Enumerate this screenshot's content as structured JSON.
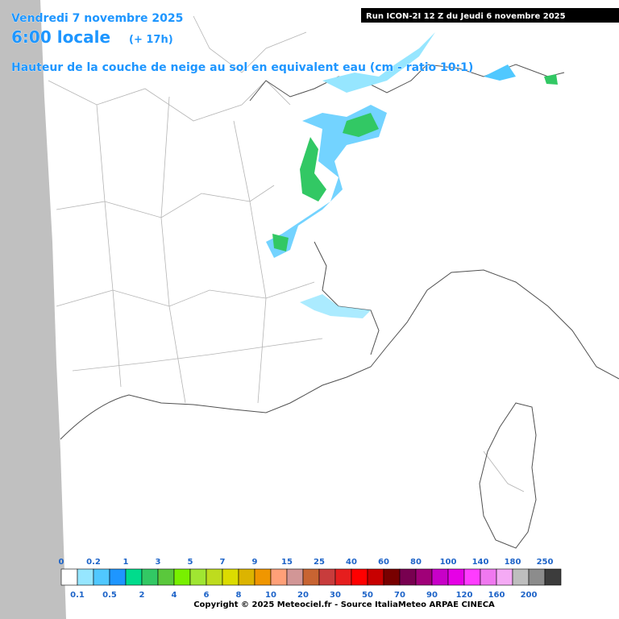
{
  "header": {
    "date": "Vendredi 7 novembre 2025",
    "time": "6:00 locale",
    "lead": "(+ 17h)",
    "parameter": "Hauteur de la couche de neige au sol en equivalent eau (cm - ratio 10:1)",
    "run": "Run ICON-2I 12 Z du Jeudi 6 novembre 2025"
  },
  "legend": {
    "colors": [
      "#ffffff",
      "#96e6ff",
      "#50c8ff",
      "#1e96ff",
      "#00dc8c",
      "#32c864",
      "#5ac83c",
      "#78f000",
      "#a0e632",
      "#bedc1e",
      "#dcdc00",
      "#dcb400",
      "#f09600",
      "#ffa078",
      "#d29696",
      "#c86432",
      "#c83c3c",
      "#e61e1e",
      "#ff0000",
      "#c80000",
      "#780000",
      "#780050",
      "#a00078",
      "#c800c8",
      "#e600e6",
      "#ff3cff",
      "#f078f0",
      "#f5aaf5",
      "#bebebe",
      "#8c8c8c",
      "#3c3c3c"
    ],
    "upper_labels": [
      0,
      0.2,
      1,
      3,
      5,
      7,
      9,
      15,
      25,
      40,
      60,
      80,
      100,
      140,
      180,
      250
    ],
    "lower_labels": [
      0.1,
      0.5,
      2,
      4,
      6,
      8,
      10,
      20,
      30,
      50,
      70,
      90,
      120,
      160,
      200
    ]
  },
  "footer": {
    "copyright": "Copyright © 2025 Meteociel.fr - Source ItaliaMeteo ARPAE CINECA"
  }
}
